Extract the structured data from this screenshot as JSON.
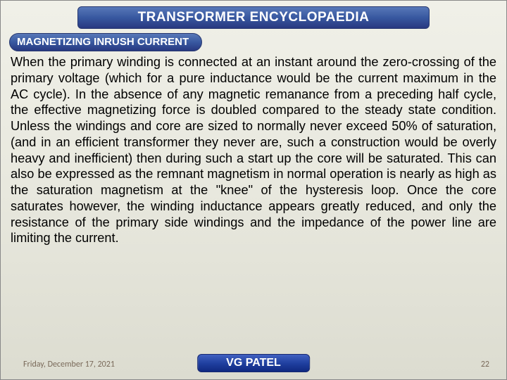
{
  "title": "TRANSFORMER ENCYCLOPAEDIA",
  "subtitle": "MAGNETIZING INRUSH CURRENT",
  "body": "When the primary winding is connected at an instant around the zero-crossing of the primary voltage (which for a pure inductance would be the current maximum in the AC cycle). In the absence of any magnetic remanance from a preceding half cycle, the effective magnetizing force is doubled compared to the steady state condition. Unless the windings and core are sized to normally never exceed 50% of saturation, (and in an efficient transformer they never are, such a construction would be overly heavy and inefficient) then during such a start up the core will be saturated. This can also be expressed as the remnant magnetism in normal operation is nearly as high as the saturation magnetism at the \"knee\" of the hysteresis loop. Once the core saturates however, the winding inductance appears greatly reduced, and only the resistance of the primary side windings and the impedance of the power line are limiting the current.",
  "footer": {
    "date": "Friday, December 17, 2021",
    "author": "VG PATEL",
    "page": "22"
  },
  "colors": {
    "pill_gradient_top": "#5878b8",
    "pill_gradient_bottom": "#283880",
    "background": "#e8e8de",
    "footer_text": "#7a6a5a"
  }
}
